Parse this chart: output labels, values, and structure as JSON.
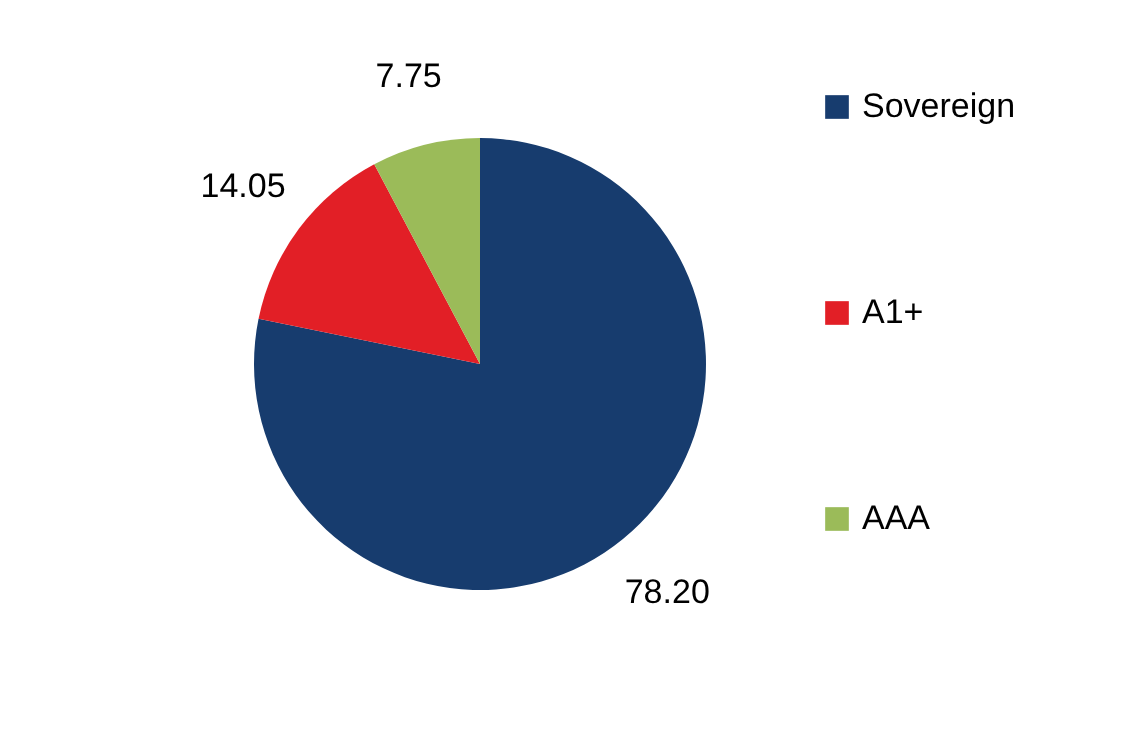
{
  "chart_data": {
    "type": "pie",
    "categories": [
      "Sovereign",
      "A1+",
      "AAA"
    ],
    "values": [
      78.2,
      14.05,
      7.75
    ],
    "colors": [
      "#173c6e",
      "#e21f26",
      "#9bbb59"
    ],
    "value_labels": [
      "78.20",
      "14.05",
      "7.75"
    ],
    "legend": "right"
  }
}
